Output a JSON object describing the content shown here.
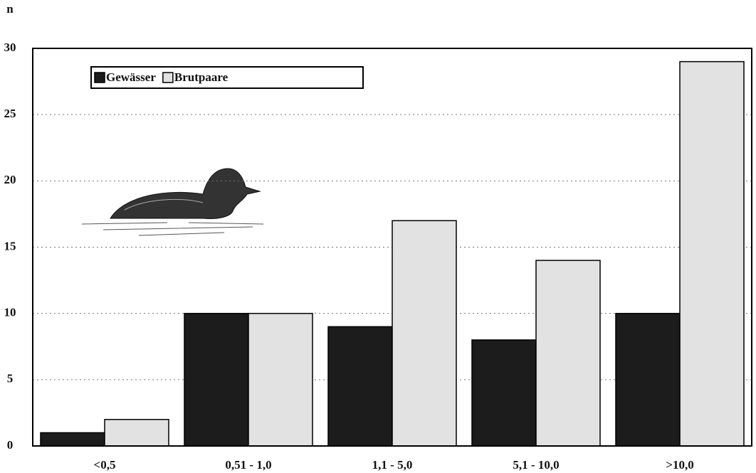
{
  "chart_data": {
    "type": "bar",
    "y_label": "n",
    "categories": [
      "<0,5",
      "0,51 - 1,0",
      "1,1 - 5,0",
      "5,1 - 10,0",
      ">10,0"
    ],
    "series": [
      {
        "name": "Gewässer",
        "color": "#1c1c1c",
        "values": [
          1,
          10,
          9,
          8,
          10
        ]
      },
      {
        "name": "Brutpaare",
        "color": "#e2e2e2",
        "values": [
          2,
          10,
          17,
          14,
          29
        ]
      }
    ],
    "ylim": [
      0,
      30
    ],
    "yticks": [
      0,
      5,
      10,
      15,
      20,
      25,
      30
    ],
    "grid": true,
    "legend": "top-left"
  }
}
